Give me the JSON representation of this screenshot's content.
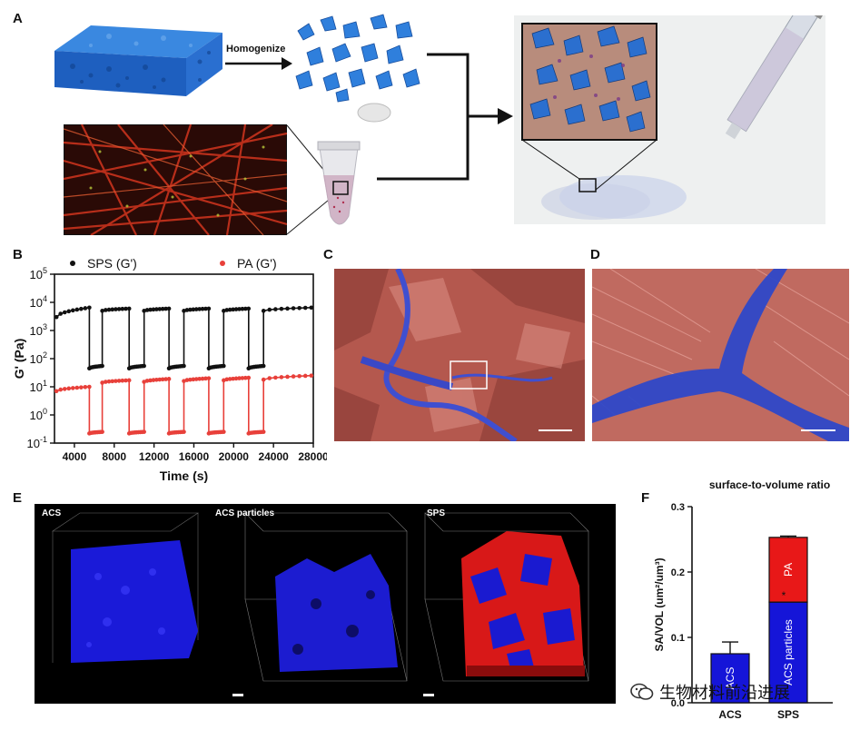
{
  "panels": {
    "a": {
      "label": "A",
      "homogenize": "Homogenize"
    },
    "b": {
      "label": "B"
    },
    "c": {
      "label": "C"
    },
    "d": {
      "label": "D"
    },
    "e": {
      "label": "E",
      "view1": "ACS",
      "view2": "ACS particles",
      "view3": "SPS"
    },
    "f": {
      "label": "F"
    }
  },
  "watermark": {
    "text": "生物材料前沿进展"
  },
  "chart_data": [
    {
      "type": "line",
      "ylabel": "G' (Pa)",
      "xlabel": "Time (s)",
      "xlim": [
        2000,
        28000
      ],
      "ylim_log10": [
        -1,
        5
      ],
      "yscale": "log",
      "xticks": [
        "4000",
        "8000",
        "12000",
        "16000",
        "20000",
        "24000",
        "28000"
      ],
      "yticks": [
        {
          "base": "10",
          "exp": "5"
        },
        {
          "base": "10",
          "exp": "4"
        },
        {
          "base": "10",
          "exp": "3"
        },
        {
          "base": "10",
          "exp": "2"
        },
        {
          "base": "10",
          "exp": "1"
        },
        {
          "base": "10",
          "exp": "0"
        },
        {
          "base": "10",
          "exp": "-1"
        }
      ],
      "series": [
        {
          "name": "SPS   (G')",
          "color": "#111111",
          "segments": [
            {
              "x": [
                2200,
                5500
              ],
              "y": [
                3000,
                6500
              ]
            },
            {
              "x": [
                5500,
                6800
              ],
              "y": [
                45,
                55
              ]
            },
            {
              "x": [
                6800,
                9500
              ],
              "y": [
                5000,
                6000
              ]
            },
            {
              "x": [
                9500,
                11000
              ],
              "y": [
                45,
                55
              ]
            },
            {
              "x": [
                11000,
                13500
              ],
              "y": [
                5000,
                6000
              ]
            },
            {
              "x": [
                13500,
                15000
              ],
              "y": [
                45,
                55
              ]
            },
            {
              "x": [
                15000,
                17500
              ],
              "y": [
                5000,
                6000
              ]
            },
            {
              "x": [
                17500,
                19000
              ],
              "y": [
                45,
                55
              ]
            },
            {
              "x": [
                19000,
                21500
              ],
              "y": [
                5000,
                6000
              ]
            },
            {
              "x": [
                21500,
                23000
              ],
              "y": [
                45,
                55
              ]
            },
            {
              "x": [
                23000,
                27800
              ],
              "y": [
                5000,
                6500
              ]
            }
          ]
        },
        {
          "name": "PA (G')",
          "color": "#e8403a",
          "segments": [
            {
              "x": [
                2200,
                5500
              ],
              "y": [
                7,
                10
              ]
            },
            {
              "x": [
                5500,
                6800
              ],
              "y": [
                0.22,
                0.25
              ]
            },
            {
              "x": [
                6800,
                9500
              ],
              "y": [
                14,
                17
              ]
            },
            {
              "x": [
                9500,
                11000
              ],
              "y": [
                0.22,
                0.25
              ]
            },
            {
              "x": [
                11000,
                13500
              ],
              "y": [
                15,
                19
              ]
            },
            {
              "x": [
                13500,
                15000
              ],
              "y": [
                0.22,
                0.25
              ]
            },
            {
              "x": [
                15000,
                17500
              ],
              "y": [
                16,
                20
              ]
            },
            {
              "x": [
                17500,
                19000
              ],
              "y": [
                0.22,
                0.25
              ]
            },
            {
              "x": [
                19000,
                21500
              ],
              "y": [
                17,
                21
              ]
            },
            {
              "x": [
                21500,
                23000
              ],
              "y": [
                0.22,
                0.25
              ]
            },
            {
              "x": [
                23000,
                27800
              ],
              "y": [
                18,
                25
              ]
            }
          ]
        }
      ]
    },
    {
      "type": "bar",
      "title": "surface-to-volume ratio",
      "ylabel": "SA/VOL (um²/um³)",
      "ylim": [
        0,
        0.3
      ],
      "yticks": [
        "0.0",
        "0.1",
        "0.2",
        "0.3"
      ],
      "categories": [
        "ACS",
        "SPS"
      ],
      "series": [
        {
          "name": "ACS",
          "values": [
            0.075,
            0
          ],
          "color": "#1515d8",
          "error": [
            0.018,
            0
          ]
        },
        {
          "name": "ACS particles",
          "values": [
            0,
            0.154
          ],
          "color": "#1515d8",
          "error": [
            0,
            0.003
          ]
        },
        {
          "name": "PA",
          "values": [
            0,
            0.099
          ],
          "color": "#e81818",
          "error": [
            0,
            0.002
          ]
        }
      ],
      "annotation": "*"
    }
  ]
}
